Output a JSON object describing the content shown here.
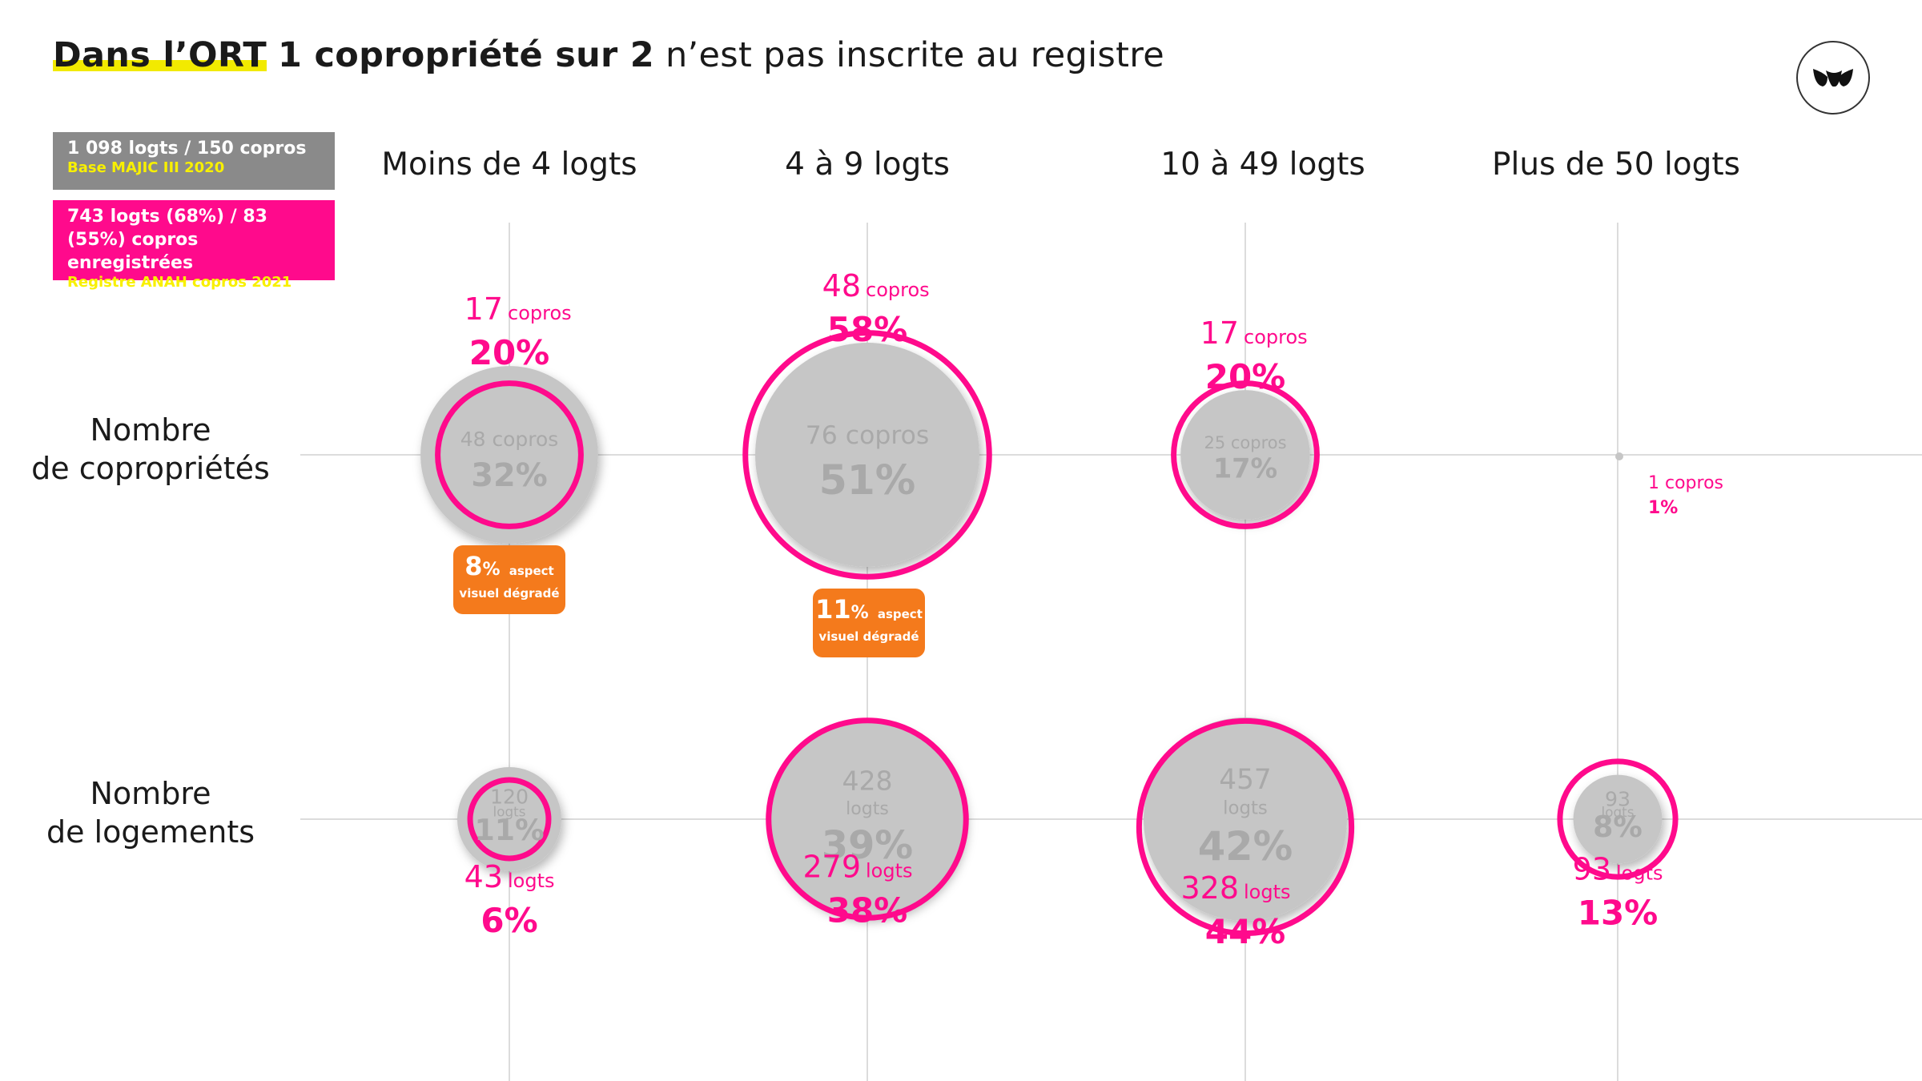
{
  "title": {
    "highlight": "Dans l’ORT",
    "bold": "1 copropriété sur 2",
    "rest": "n’est pas inscrite au registre"
  },
  "legend": {
    "grey": {
      "main": "1 098 logts / 150 copros",
      "source": "Base MAJIC III 2020",
      "color": "#8a8a8a"
    },
    "pink": {
      "line1": "743 logts (68%) / 83",
      "line2": "(55%) copros enregistrées",
      "source": "Registre ANAH copros 2021",
      "color": "#ff0a8c"
    }
  },
  "columns": [
    "Moins de 4 logts",
    "4 à 9 logts",
    "10 à 49 logts",
    "Plus de 50 logts"
  ],
  "rows": {
    "copros": {
      "line1": "Nombre",
      "line2": "de copropriétés"
    },
    "logts": {
      "line1": "Nombre",
      "line2": "de logements"
    }
  },
  "badges": [
    {
      "pct": "8",
      "pct_sign": "%",
      "aspect": "aspect",
      "desc": "visuel dégradé"
    },
    {
      "pct": "11",
      "pct_sign": "%",
      "aspect": "aspect",
      "desc": "visuel dégradé"
    }
  ],
  "colors": {
    "grey_bubble": "#c6c6c6",
    "pink": "#ff0a8c",
    "orange": "#f47a1c",
    "grey_text": "#a9a9a9"
  },
  "chart_data": {
    "type": "bubble",
    "categories": [
      "Moins de 4 logts",
      "4 à 9 logts",
      "10 à 49 logts",
      "Plus de 50 logts"
    ],
    "series": [
      {
        "name": "Nombre de copropriétés",
        "unit": "copros",
        "total_counts": [
          48,
          76,
          25,
          1
        ],
        "total_pct": [
          32,
          51,
          17,
          1
        ],
        "registered_counts": [
          17,
          48,
          17,
          null
        ],
        "registered_pct": [
          20,
          58,
          20,
          null
        ],
        "display": [
          {
            "total": "48",
            "total_pct": "32%",
            "reg": "17",
            "reg_pct": "20%"
          },
          {
            "total": "76",
            "total_pct": "51%",
            "reg": "48",
            "reg_pct": "58%"
          },
          {
            "total": "25",
            "total_pct": "17%",
            "reg": "17",
            "reg_pct": "20%"
          },
          {
            "total": "1",
            "total_pct": "1%",
            "reg": "",
            "reg_pct": ""
          }
        ]
      },
      {
        "name": "Nombre de logements",
        "unit": "logts",
        "total_counts": [
          120,
          428,
          457,
          93
        ],
        "total_pct": [
          11,
          39,
          42,
          8
        ],
        "registered_counts": [
          43,
          279,
          328,
          93
        ],
        "registered_pct": [
          6,
          38,
          44,
          13
        ],
        "display": [
          {
            "total": "120",
            "total_pct": "11%",
            "reg": "43",
            "reg_pct": "6%"
          },
          {
            "total": "428",
            "total_pct": "39%",
            "reg": "279",
            "reg_pct": "38%"
          },
          {
            "total": "457",
            "total_pct": "42%",
            "reg": "328",
            "reg_pct": "44%"
          },
          {
            "total": "93",
            "total_pct": "8%",
            "reg": "93",
            "reg_pct": "13%"
          }
        ]
      }
    ],
    "grid": true
  }
}
